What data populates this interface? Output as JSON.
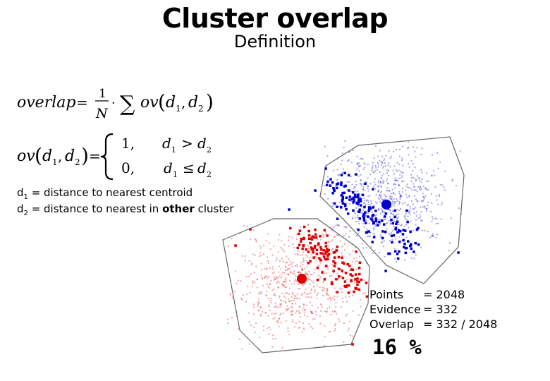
{
  "title": "Cluster overlap",
  "subtitle": "Definition",
  "formula": {
    "line1": {
      "lhs": "overlap",
      "equals": "=",
      "numerator": "1",
      "denominator": "N",
      "dot": "·",
      "sum": "∑",
      "fn": "ov",
      "args": "d",
      "sub1": "1",
      "comma": ",",
      "sub2": "2"
    },
    "line2": {
      "lhs_fn": "ov",
      "sub1": "1",
      "sub2": "2",
      "equals": "=",
      "case1_value": "1,",
      "case1_cond": ">",
      "case2_value": "0,",
      "case2_cond": "≤"
    }
  },
  "definitions": [
    {
      "symbol": "d",
      "sub": "1",
      "text_before": "= distance to nearest centroid",
      "bold": "",
      "text_after": ""
    },
    {
      "symbol": "d",
      "sub": "2",
      "text_before": "= distance to nearest in ",
      "bold": "other",
      "text_after": " cluster"
    }
  ],
  "stats": [
    {
      "label": "Points",
      "value": "= 2048"
    },
    {
      "label": "Evidence",
      "value": "= 332"
    },
    {
      "label": "Overlap",
      "value": "= 332 / 2048"
    }
  ],
  "result": "16 %",
  "colors": {
    "cluster_blue": "#0000cc",
    "cluster_red": "#dd0000",
    "hull": "#666666"
  }
}
